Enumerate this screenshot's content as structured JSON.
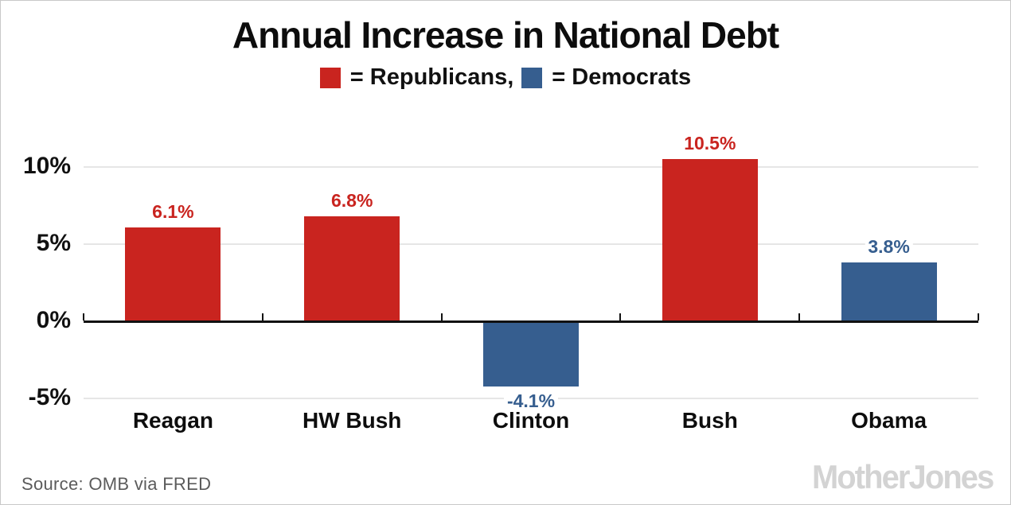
{
  "chart_data": {
    "type": "bar",
    "title": "Annual Increase in National Debt",
    "categories": [
      "Reagan",
      "HW Bush",
      "Clinton",
      "Bush",
      "Obama"
    ],
    "values": [
      6.1,
      6.8,
      -4.1,
      10.5,
      3.8
    ],
    "value_labels": [
      "6.1%",
      "6.8%",
      "-4.1%",
      "10.5%",
      "3.8%"
    ],
    "parties": [
      "R",
      "R",
      "D",
      "R",
      "D"
    ],
    "party_colors": {
      "R": "#c9241f",
      "D": "#365e8f"
    },
    "legend": [
      {
        "label": "= Republicans,",
        "party": "R",
        "color": "#c9241f"
      },
      {
        "label": "= Democrats",
        "party": "D",
        "color": "#365e8f"
      }
    ],
    "legend_position": "top",
    "yticks": [
      10,
      5,
      0,
      -5
    ],
    "ytick_labels": [
      "10%",
      "5%",
      "0%",
      "-5%"
    ],
    "ylim": [
      -6.5,
      13
    ],
    "grid": true,
    "xlabel": "",
    "ylabel": ""
  },
  "footer": {
    "source": "Source: OMB via FRED",
    "logo": "MotherJones"
  }
}
